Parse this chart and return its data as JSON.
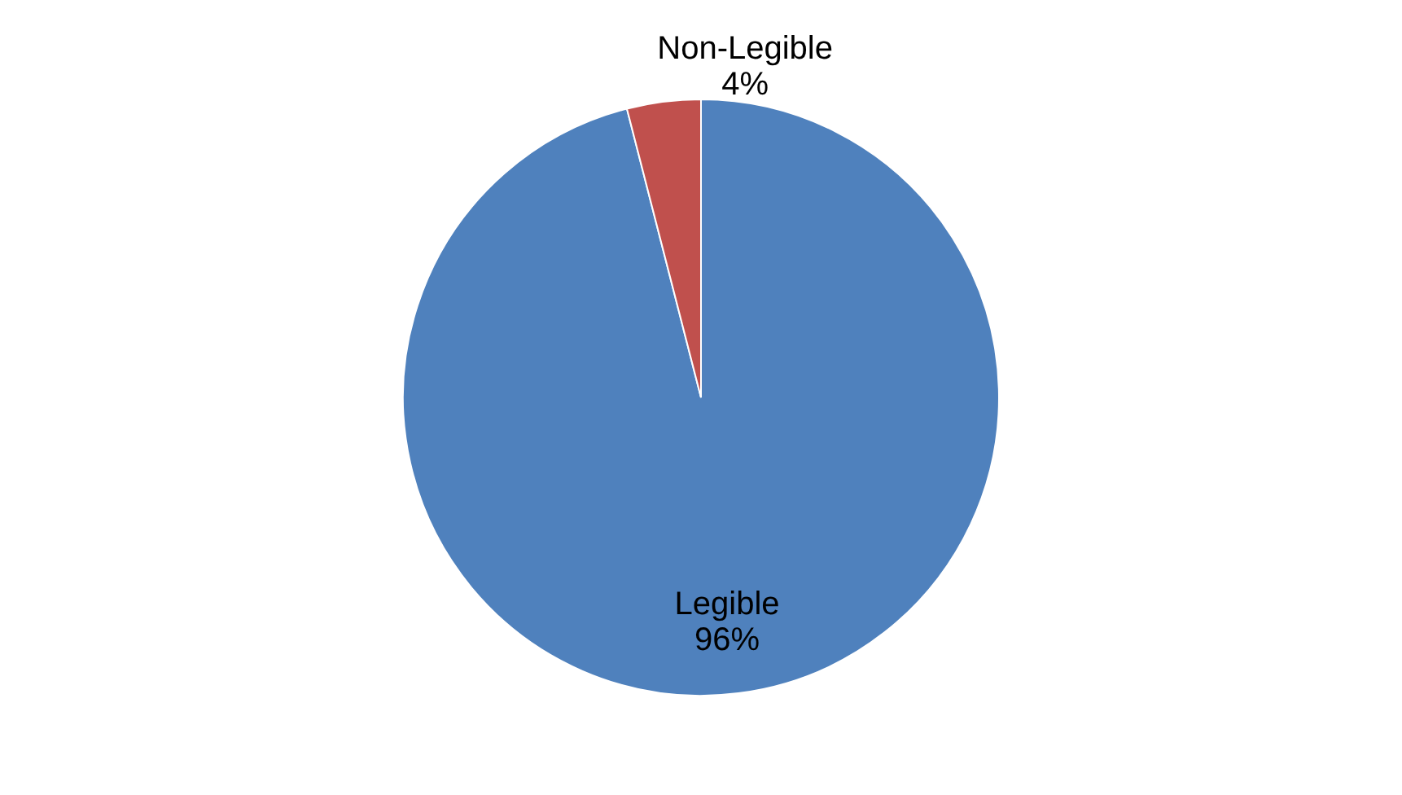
{
  "chart_data": {
    "type": "pie",
    "categories": [
      "Legible",
      "Non-Legible"
    ],
    "values": [
      96,
      4
    ],
    "colors": [
      "#4f81bd",
      "#c0504d"
    ],
    "value_labels": [
      "96%",
      "4%"
    ],
    "legend": false
  }
}
